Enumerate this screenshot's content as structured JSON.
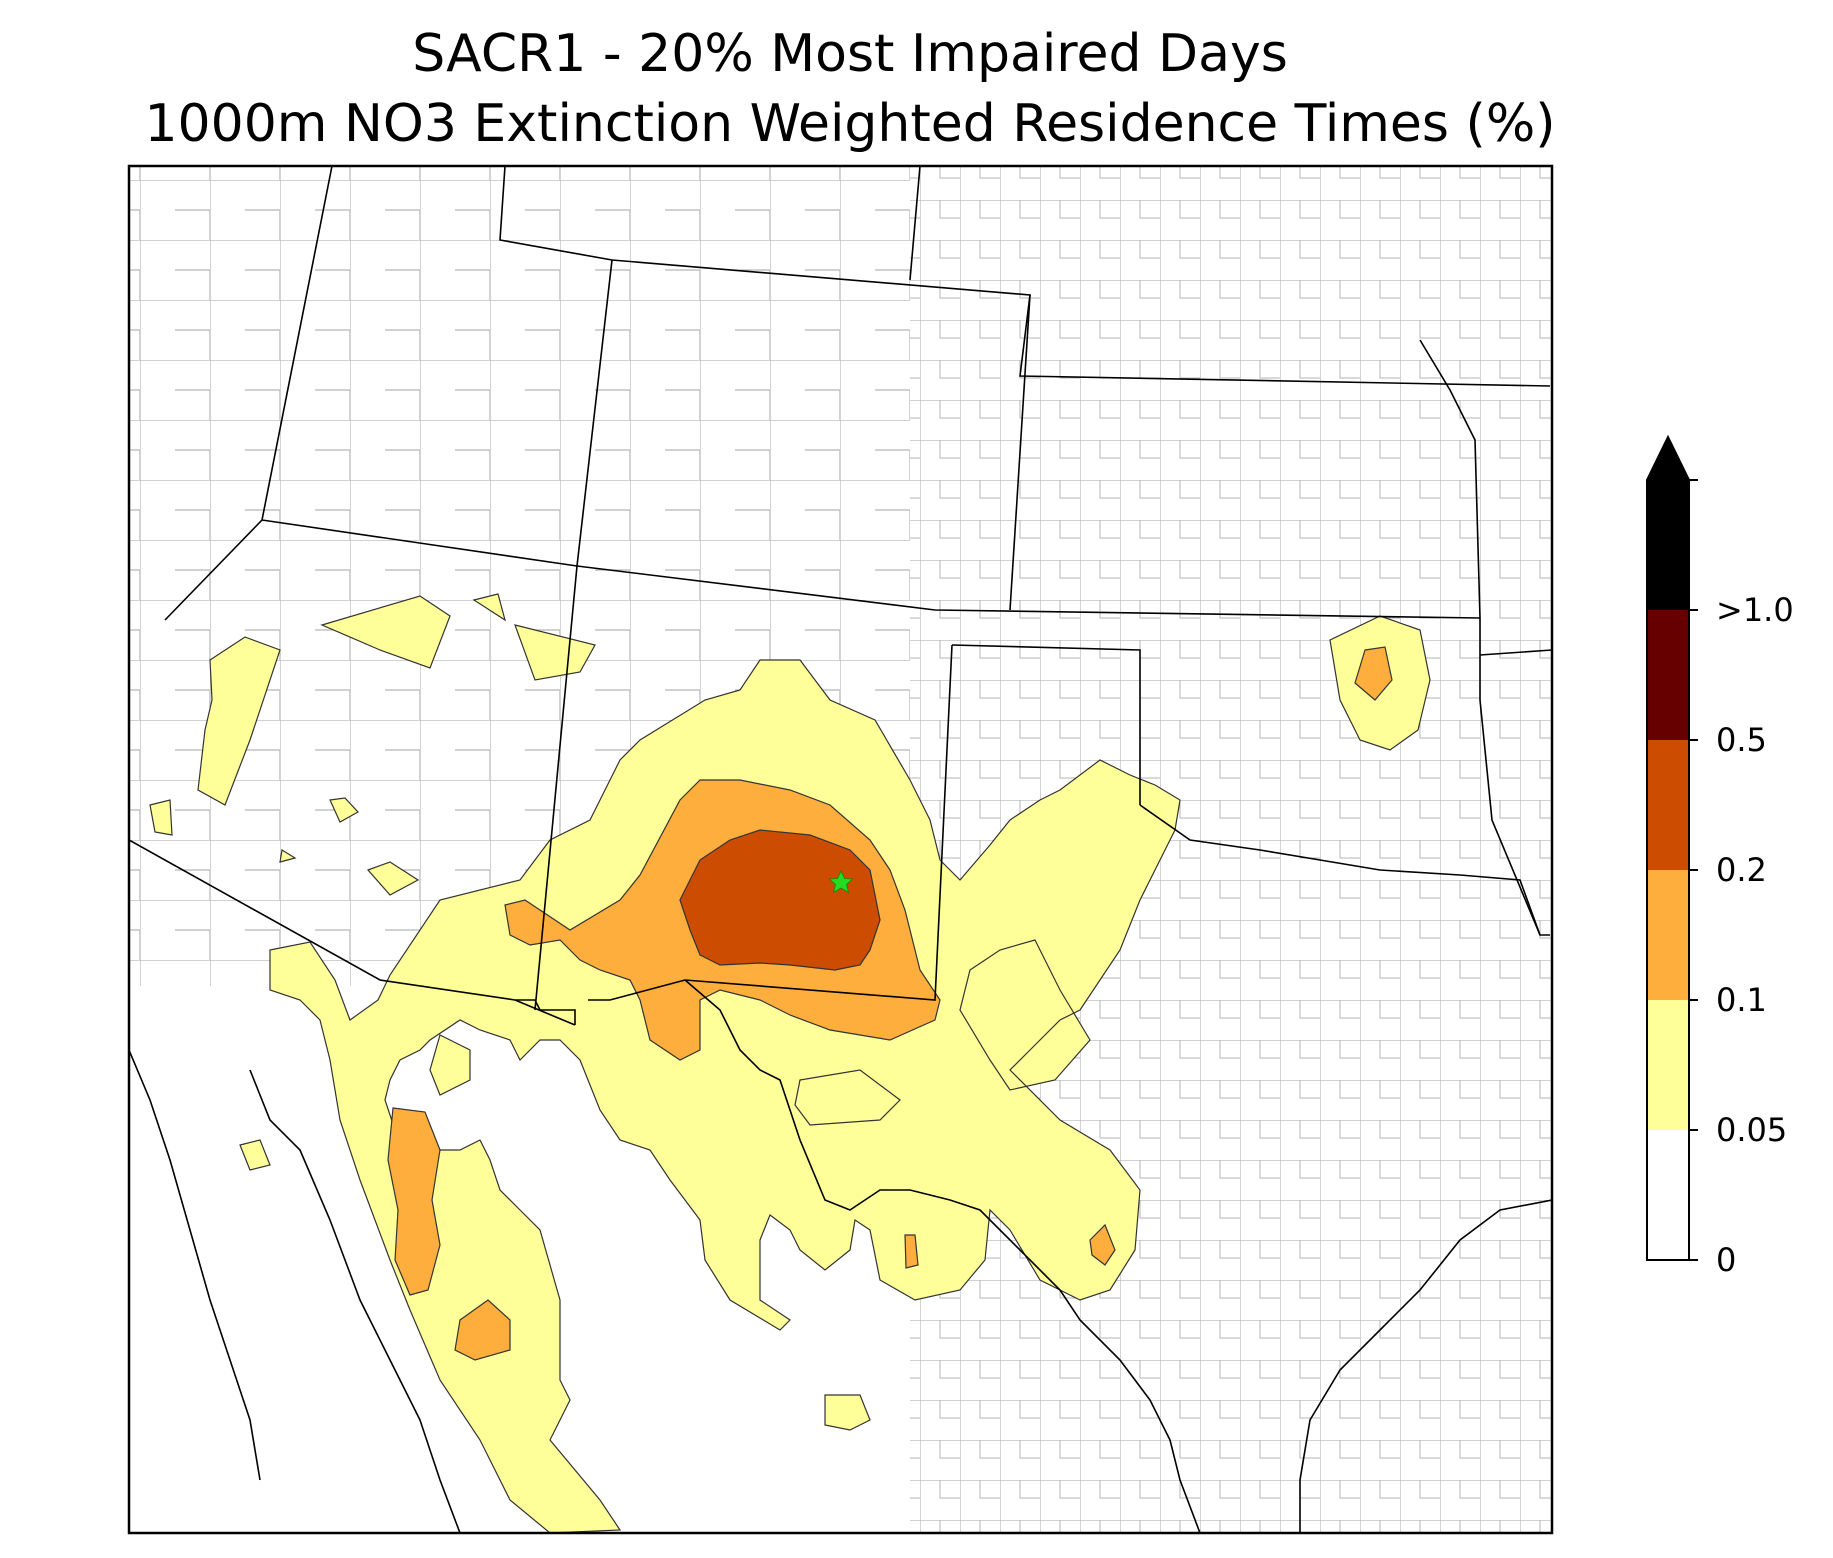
{
  "title": {
    "line1": "SACR1 - 20% Most Impaired Days",
    "line2": "1000m NO3 Extinction Weighted Residence Times (%)"
  },
  "map": {
    "site_marker": "green-star-icon",
    "colors": {
      "c005_01": "#ffff99",
      "c01_02": "#fdae3c",
      "c02_05": "#cc4c02",
      "c05_10": "#660000",
      "c10_plus": "#000000",
      "county_lines": "#a8a8a8",
      "state_lines": "#000000",
      "marker": "#22dd22"
    }
  },
  "colorbar": {
    "levels": [
      "0",
      "0.05",
      "0.1",
      "0.2",
      "0.5",
      ">1.0"
    ],
    "extend": "max",
    "colors": [
      "#ffffff",
      "#ffff99",
      "#fdae3c",
      "#cc4c02",
      "#660000",
      "#000000"
    ]
  }
}
